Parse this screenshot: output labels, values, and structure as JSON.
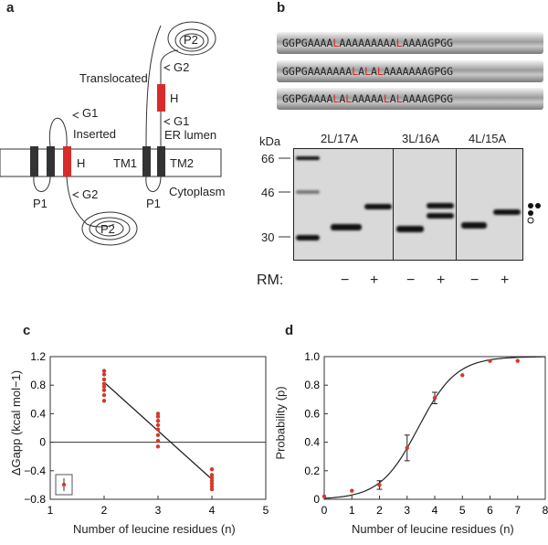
{
  "panels": {
    "a": "a",
    "b": "b",
    "c": "c",
    "d": "d"
  },
  "panel_a": {
    "P2": "P2",
    "G2": "G2",
    "translocated": "Translocated",
    "H": "H",
    "G1": "G1",
    "inserted": "Inserted",
    "er_lumen": "ER lumen",
    "TM1": "TM1",
    "TM2": "TM2",
    "cytoplasm": "Cytoplasm",
    "P1": "P1"
  },
  "panel_b": {
    "sequences": [
      {
        "parts": [
          "GGPGAAAA",
          "L",
          "AAAAAAAAA",
          "L",
          "AAAAGPGG"
        ]
      },
      {
        "parts": [
          "GGPGAAAAAAA",
          "L",
          "A",
          "L",
          "A",
          "L",
          "AAAAAAAGPGG"
        ]
      },
      {
        "parts": [
          "GGPGAAAA",
          "L",
          "A",
          "L",
          "AAAAA",
          "L",
          "A",
          "L",
          "AAAAGPGG"
        ]
      }
    ],
    "kda": "kDa",
    "markers": [
      "66",
      "46",
      "30"
    ],
    "lanes": [
      "2L/17A",
      "3L/16A",
      "4L/15A"
    ],
    "rm_label": "RM:",
    "rm_signs": [
      "−",
      "+",
      "−",
      "+",
      "−",
      "+"
    ]
  },
  "chart_data": [
    {
      "type": "scatter",
      "panel": "c",
      "xlabel": "Number of leucine residues (n)",
      "ylabel": "ΔGapp (kcal mol−1)",
      "xlim": [
        1,
        5
      ],
      "ylim": [
        -0.8,
        1.2
      ],
      "xticks": [
        "1",
        "2",
        "3",
        "4",
        "5"
      ],
      "yticks": [
        "1.2",
        "0.8",
        "0.4",
        "0",
        "−0.4",
        "−0.8"
      ],
      "points": [
        {
          "x": 2,
          "y": 1.0
        },
        {
          "x": 2,
          "y": 0.95
        },
        {
          "x": 2,
          "y": 0.88
        },
        {
          "x": 2,
          "y": 0.82
        },
        {
          "x": 2,
          "y": 0.78
        },
        {
          "x": 2,
          "y": 0.73
        },
        {
          "x": 2,
          "y": 0.66
        },
        {
          "x": 2,
          "y": 0.58
        },
        {
          "x": 3,
          "y": 0.4
        },
        {
          "x": 3,
          "y": 0.36
        },
        {
          "x": 3,
          "y": 0.3
        },
        {
          "x": 3,
          "y": 0.24
        },
        {
          "x": 3,
          "y": 0.18
        },
        {
          "x": 3,
          "y": 0.1
        },
        {
          "x": 3,
          "y": 0.02
        },
        {
          "x": 3,
          "y": -0.06
        },
        {
          "x": 4,
          "y": -0.38
        },
        {
          "x": 4,
          "y": -0.46
        },
        {
          "x": 4,
          "y": -0.5
        },
        {
          "x": 4,
          "y": -0.54
        },
        {
          "x": 4,
          "y": -0.58
        },
        {
          "x": 4,
          "y": -0.62
        },
        {
          "x": 4,
          "y": -0.66
        }
      ],
      "fit_line": [
        {
          "x": 2,
          "y": 0.84
        },
        {
          "x": 4,
          "y": -0.52
        }
      ]
    },
    {
      "type": "scatter",
      "panel": "d",
      "xlabel": "Number of leucine residues (n)",
      "ylabel": "Probability (p)",
      "xlim": [
        0,
        8
      ],
      "ylim": [
        0,
        1.0
      ],
      "xticks": [
        "0",
        "1",
        "2",
        "3",
        "4",
        "5",
        "6",
        "7",
        "8"
      ],
      "yticks": [
        "1.0",
        "0.8",
        "0.6",
        "0.4",
        "0.2",
        "0"
      ],
      "points": [
        {
          "x": 0,
          "y": 0.02
        },
        {
          "x": 1,
          "y": 0.06
        },
        {
          "x": 2,
          "y": 0.1,
          "err": 0.03
        },
        {
          "x": 3,
          "y": 0.36,
          "err": 0.09
        },
        {
          "x": 4,
          "y": 0.71,
          "err": 0.04
        },
        {
          "x": 5,
          "y": 0.87
        },
        {
          "x": 6,
          "y": 0.97
        },
        {
          "x": 7,
          "y": 0.97
        }
      ],
      "curve": {
        "midpoint": 3.4,
        "slope": 1.45
      }
    }
  ]
}
